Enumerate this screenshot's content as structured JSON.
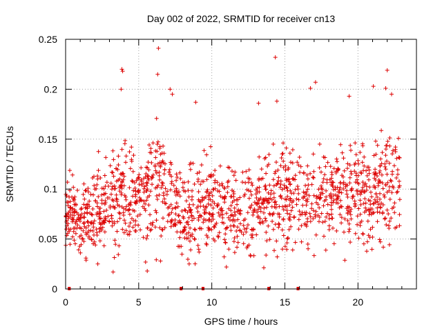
{
  "chart_data": {
    "type": "scatter",
    "title": "Day 002 of 2022, SRMTID for receiver cn13",
    "xlabel": "GPS time / hours",
    "ylabel": "SRMTID / TECUs",
    "xlim": [
      0,
      24
    ],
    "ylim": [
      0,
      0.25
    ],
    "x_ticks": [
      0,
      5,
      10,
      15,
      20
    ],
    "x_tick_labels": [
      "0",
      "5",
      "10",
      "15",
      "20"
    ],
    "y_ticks": [
      0,
      0.05,
      0.1,
      0.15,
      0.2,
      0.25
    ],
    "y_tick_labels": [
      "0",
      "0.05",
      "0.1",
      "0.15",
      "0.2",
      "0.25"
    ],
    "grid": true,
    "marker": "plus",
    "color": "#dd0000",
    "data_extent_hours": [
      0,
      22.9
    ],
    "zero_value_segments_hours": [
      [
        0.2,
        0.3
      ],
      [
        7.85,
        7.95
      ],
      [
        9.35,
        9.45
      ],
      [
        13.85,
        13.95
      ],
      [
        15.85,
        15.95
      ]
    ],
    "envelope": [
      {
        "x": 0.0,
        "center": 0.075,
        "spread": 0.035
      },
      {
        "x": 1.0,
        "center": 0.068,
        "spread": 0.03
      },
      {
        "x": 2.0,
        "center": 0.075,
        "spread": 0.035
      },
      {
        "x": 3.0,
        "center": 0.083,
        "spread": 0.04
      },
      {
        "x": 4.0,
        "center": 0.1,
        "spread": 0.05
      },
      {
        "x": 5.0,
        "center": 0.09,
        "spread": 0.045
      },
      {
        "x": 6.0,
        "center": 0.105,
        "spread": 0.055
      },
      {
        "x": 7.0,
        "center": 0.095,
        "spread": 0.045
      },
      {
        "x": 8.0,
        "center": 0.075,
        "spread": 0.035
      },
      {
        "x": 9.0,
        "center": 0.08,
        "spread": 0.04
      },
      {
        "x": 10.0,
        "center": 0.085,
        "spread": 0.04
      },
      {
        "x": 11.0,
        "center": 0.08,
        "spread": 0.04
      },
      {
        "x": 12.0,
        "center": 0.08,
        "spread": 0.04
      },
      {
        "x": 13.0,
        "center": 0.08,
        "spread": 0.04
      },
      {
        "x": 14.0,
        "center": 0.09,
        "spread": 0.045
      },
      {
        "x": 15.0,
        "center": 0.095,
        "spread": 0.045
      },
      {
        "x": 16.0,
        "center": 0.09,
        "spread": 0.045
      },
      {
        "x": 17.0,
        "center": 0.09,
        "spread": 0.045
      },
      {
        "x": 18.0,
        "center": 0.09,
        "spread": 0.045
      },
      {
        "x": 19.0,
        "center": 0.09,
        "spread": 0.045
      },
      {
        "x": 20.0,
        "center": 0.095,
        "spread": 0.045
      },
      {
        "x": 21.0,
        "center": 0.095,
        "spread": 0.05
      },
      {
        "x": 22.0,
        "center": 0.1,
        "spread": 0.05
      },
      {
        "x": 22.9,
        "center": 0.11,
        "spread": 0.045
      }
    ],
    "notable_points": [
      {
        "x": 3.85,
        "y": 0.22
      },
      {
        "x": 3.9,
        "y": 0.218
      },
      {
        "x": 3.8,
        "y": 0.2
      },
      {
        "x": 6.35,
        "y": 0.241
      },
      {
        "x": 6.3,
        "y": 0.215
      },
      {
        "x": 7.15,
        "y": 0.2
      },
      {
        "x": 7.3,
        "y": 0.195
      },
      {
        "x": 8.9,
        "y": 0.187
      },
      {
        "x": 14.35,
        "y": 0.232
      },
      {
        "x": 14.45,
        "y": 0.188
      },
      {
        "x": 13.2,
        "y": 0.186
      },
      {
        "x": 17.1,
        "y": 0.207
      },
      {
        "x": 16.75,
        "y": 0.201
      },
      {
        "x": 19.4,
        "y": 0.193
      },
      {
        "x": 21.05,
        "y": 0.203
      },
      {
        "x": 22.0,
        "y": 0.219
      },
      {
        "x": 21.9,
        "y": 0.201
      },
      {
        "x": 22.3,
        "y": 0.195
      },
      {
        "x": 2.2,
        "y": 0.025
      },
      {
        "x": 3.25,
        "y": 0.017
      },
      {
        "x": 8.45,
        "y": 0.025
      },
      {
        "x": 11.0,
        "y": 0.022
      },
      {
        "x": 12.65,
        "y": 0.033
      }
    ]
  }
}
